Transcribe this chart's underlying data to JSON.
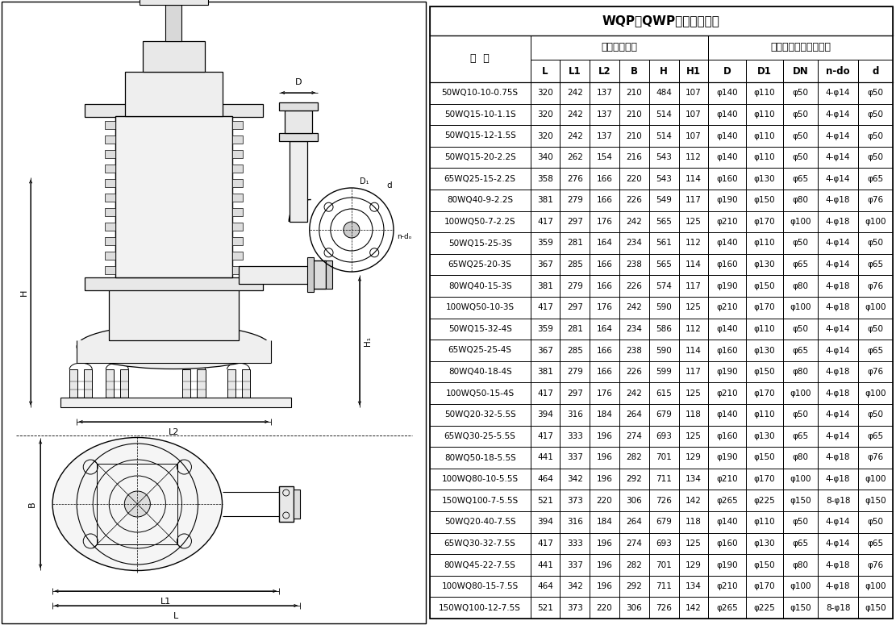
{
  "title": "WQP（QWP）安装尺寸表",
  "col0_header": "型  号",
  "ext_header": "外形安装尺寸",
  "flange_header": "泵出口法兰及连接尺寸",
  "col_headers": [
    "L",
    "L1",
    "L2",
    "B",
    "H",
    "H1",
    "D",
    "D1",
    "DN",
    "n-do",
    "d"
  ],
  "rows": [
    [
      "50WQ10-10-0.75S",
      "320",
      "242",
      "137",
      "210",
      "484",
      "107",
      "φ140",
      "φ110",
      "φ50",
      "4-φ14",
      "φ50"
    ],
    [
      "50WQ15-10-1.1S",
      "320",
      "242",
      "137",
      "210",
      "514",
      "107",
      "φ140",
      "φ110",
      "φ50",
      "4-φ14",
      "φ50"
    ],
    [
      "50WQ15-12-1.5S",
      "320",
      "242",
      "137",
      "210",
      "514",
      "107",
      "φ140",
      "φ110",
      "φ50",
      "4-φ14",
      "φ50"
    ],
    [
      "50WQ15-20-2.2S",
      "340",
      "262",
      "154",
      "216",
      "543",
      "112",
      "φ140",
      "φ110",
      "φ50",
      "4-φ14",
      "φ50"
    ],
    [
      "65WQ25-15-2.2S",
      "358",
      "276",
      "166",
      "220",
      "543",
      "114",
      "φ160",
      "φ130",
      "φ65",
      "4-φ14",
      "φ65"
    ],
    [
      "80WQ40-9-2.2S",
      "381",
      "279",
      "166",
      "226",
      "549",
      "117",
      "φ190",
      "φ150",
      "φ80",
      "4-φ18",
      "φ76"
    ],
    [
      "100WQ50-7-2.2S",
      "417",
      "297",
      "176",
      "242",
      "565",
      "125",
      "φ210",
      "φ170",
      "φ100",
      "4-φ18",
      "φ100"
    ],
    [
      "50WQ15-25-3S",
      "359",
      "281",
      "164",
      "234",
      "561",
      "112",
      "φ140",
      "φ110",
      "φ50",
      "4-φ14",
      "φ50"
    ],
    [
      "65WQ25-20-3S",
      "367",
      "285",
      "166",
      "238",
      "565",
      "114",
      "φ160",
      "φ130",
      "φ65",
      "4-φ14",
      "φ65"
    ],
    [
      "80WQ40-15-3S",
      "381",
      "279",
      "166",
      "226",
      "574",
      "117",
      "φ190",
      "φ150",
      "φ80",
      "4-φ18",
      "φ76"
    ],
    [
      "100WQ50-10-3S",
      "417",
      "297",
      "176",
      "242",
      "590",
      "125",
      "φ210",
      "φ170",
      "φ100",
      "4-φ18",
      "φ100"
    ],
    [
      "50WQ15-32-4S",
      "359",
      "281",
      "164",
      "234",
      "586",
      "112",
      "φ140",
      "φ110",
      "φ50",
      "4-φ14",
      "φ50"
    ],
    [
      "65WQ25-25-4S",
      "367",
      "285",
      "166",
      "238",
      "590",
      "114",
      "φ160",
      "φ130",
      "φ65",
      "4-φ14",
      "φ65"
    ],
    [
      "80WQ40-18-4S",
      "381",
      "279",
      "166",
      "226",
      "599",
      "117",
      "φ190",
      "φ150",
      "φ80",
      "4-φ18",
      "φ76"
    ],
    [
      "100WQ50-15-4S",
      "417",
      "297",
      "176",
      "242",
      "615",
      "125",
      "φ210",
      "φ170",
      "φ100",
      "4-φ18",
      "φ100"
    ],
    [
      "50WQ20-32-5.5S",
      "394",
      "316",
      "184",
      "264",
      "679",
      "118",
      "φ140",
      "φ110",
      "φ50",
      "4-φ14",
      "φ50"
    ],
    [
      "65WQ30-25-5.5S",
      "417",
      "333",
      "196",
      "274",
      "693",
      "125",
      "φ160",
      "φ130",
      "φ65",
      "4-φ14",
      "φ65"
    ],
    [
      "80WQ50-18-5.5S",
      "441",
      "337",
      "196",
      "282",
      "701",
      "129",
      "φ190",
      "φ150",
      "φ80",
      "4-φ18",
      "φ76"
    ],
    [
      "100WQ80-10-5.5S",
      "464",
      "342",
      "196",
      "292",
      "711",
      "134",
      "φ210",
      "φ170",
      "φ100",
      "4-φ18",
      "φ100"
    ],
    [
      "150WQ100-7-5.5S",
      "521",
      "373",
      "220",
      "306",
      "726",
      "142",
      "φ265",
      "φ225",
      "φ150",
      "8-φ18",
      "φ150"
    ],
    [
      "50WQ20-40-7.5S",
      "394",
      "316",
      "184",
      "264",
      "679",
      "118",
      "φ140",
      "φ110",
      "φ50",
      "4-φ14",
      "φ50"
    ],
    [
      "65WQ30-32-7.5S",
      "417",
      "333",
      "196",
      "274",
      "693",
      "125",
      "φ160",
      "φ130",
      "φ65",
      "4-φ14",
      "φ65"
    ],
    [
      "80WQ45-22-7.5S",
      "441",
      "337",
      "196",
      "282",
      "701",
      "129",
      "φ190",
      "φ150",
      "φ80",
      "4-φ18",
      "φ76"
    ],
    [
      "100WQ80-15-7.5S",
      "464",
      "342",
      "196",
      "292",
      "711",
      "134",
      "φ210",
      "φ170",
      "φ100",
      "4-φ18",
      "φ100"
    ],
    [
      "150WQ100-12-7.5S",
      "521",
      "373",
      "220",
      "306",
      "726",
      "142",
      "φ265",
      "φ225",
      "φ150",
      "8-φ18",
      "φ150"
    ]
  ],
  "col_widths_rel": [
    2.1,
    0.62,
    0.62,
    0.62,
    0.62,
    0.62,
    0.62,
    0.78,
    0.78,
    0.72,
    0.85,
    0.72
  ],
  "bg_color": "#ffffff"
}
